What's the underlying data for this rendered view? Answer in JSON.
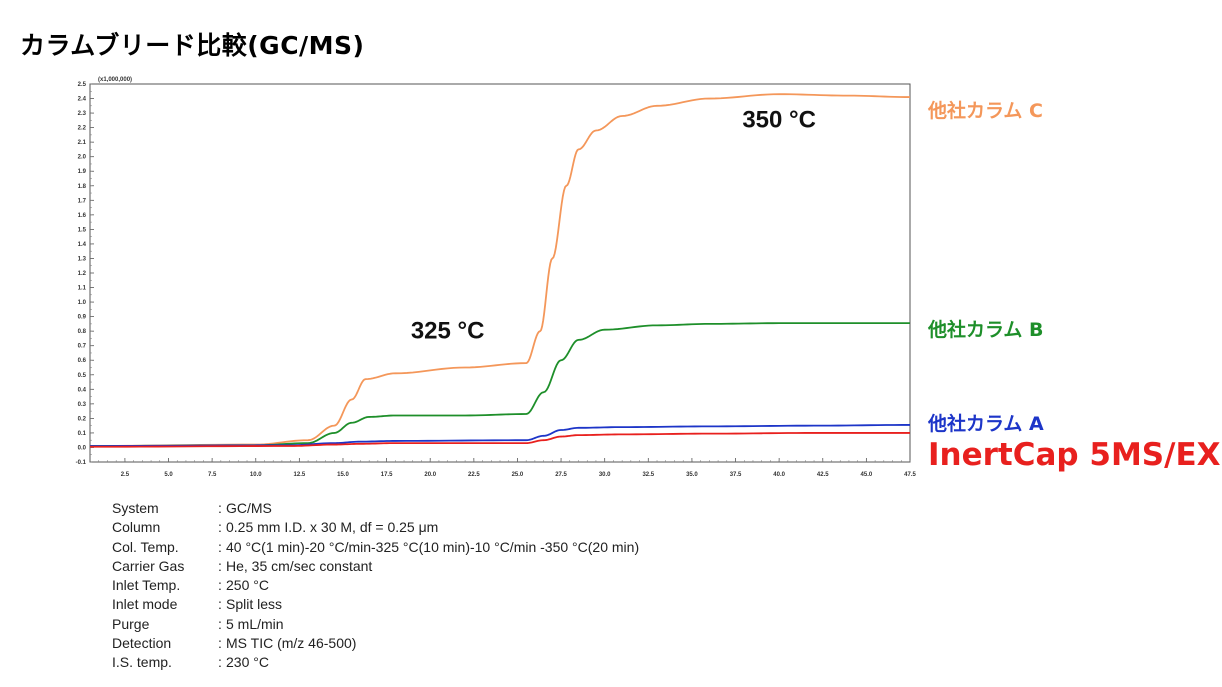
{
  "title": "カラムブリード比較(GC/MS)",
  "chart_data": {
    "type": "line",
    "title": "カラムブリード比較(GC/MS)",
    "y_multiplier_label": "(x1,000,000)",
    "xlim": [
      0.5,
      47.5
    ],
    "ylim": [
      -0.1,
      2.5
    ],
    "x_ticks": [
      "2.5",
      "5.0",
      "7.5",
      "10.0",
      "12.5",
      "15.0",
      "17.5",
      "20.0",
      "22.5",
      "25.0",
      "27.5",
      "30.0",
      "32.5",
      "35.0",
      "37.5",
      "40.0",
      "42.5",
      "45.0",
      "47.5"
    ],
    "y_ticks": [
      "-0.1",
      "0.0",
      "0.1",
      "0.2",
      "0.3",
      "0.4",
      "0.5",
      "0.6",
      "0.7",
      "0.8",
      "0.9",
      "1.0",
      "1.1",
      "1.2",
      "1.3",
      "1.4",
      "1.5",
      "1.6",
      "1.7",
      "1.8",
      "1.9",
      "2.0",
      "2.1",
      "2.2",
      "2.3",
      "2.4",
      "2.5"
    ],
    "series": [
      {
        "name": "他社カラム C",
        "color": "#f4975a",
        "x": [
          0.5,
          10,
          13,
          14.5,
          15.5,
          16.3,
          18,
          22,
          25.5,
          26.3,
          27,
          27.8,
          28.5,
          29.5,
          31,
          33,
          36,
          40,
          44,
          47.5
        ],
        "y": [
          0.01,
          0.02,
          0.05,
          0.15,
          0.33,
          0.47,
          0.51,
          0.55,
          0.58,
          0.8,
          1.3,
          1.8,
          2.05,
          2.18,
          2.28,
          2.35,
          2.4,
          2.43,
          2.42,
          2.41
        ]
      },
      {
        "name": "他社カラム B",
        "color": "#1e8f2a",
        "x": [
          0.5,
          10,
          13,
          14.5,
          15.5,
          16.5,
          18,
          22,
          25.5,
          26.5,
          27.5,
          28.5,
          30,
          33,
          36,
          40,
          44,
          47.5
        ],
        "y": [
          0.01,
          0.015,
          0.03,
          0.1,
          0.17,
          0.21,
          0.22,
          0.22,
          0.23,
          0.38,
          0.6,
          0.74,
          0.81,
          0.84,
          0.85,
          0.855,
          0.855,
          0.855
        ]
      },
      {
        "name": "他社カラム A",
        "color": "#1d35c8",
        "x": [
          0.5,
          12,
          14.5,
          16,
          18,
          25.5,
          26.5,
          27.5,
          28.5,
          31,
          36,
          42,
          47.5
        ],
        "y": [
          0.01,
          0.015,
          0.03,
          0.04,
          0.045,
          0.05,
          0.08,
          0.12,
          0.135,
          0.14,
          0.145,
          0.15,
          0.155
        ]
      },
      {
        "name": "InertCap 5MS/EX",
        "color": "#e8201e",
        "x": [
          0.5,
          12,
          14.5,
          16,
          18,
          25.5,
          26.5,
          27.5,
          28.5,
          31,
          36,
          42,
          47.5
        ],
        "y": [
          0.005,
          0.01,
          0.02,
          0.025,
          0.03,
          0.03,
          0.05,
          0.075,
          0.085,
          0.09,
          0.095,
          0.1,
          0.1
        ]
      }
    ],
    "annotations": [
      {
        "text": "325 °C",
        "x": 21,
        "y": 0.75
      },
      {
        "text": "350 °C",
        "x": 40,
        "y": 2.2
      }
    ],
    "legend_placement": "right, beside line ends",
    "grid": false
  },
  "series_labels": {
    "c": "他社カラム C",
    "b": "他社カラム B",
    "a": "他社カラム A",
    "inertcap": "InertCap 5MS/EX"
  },
  "conditions": [
    {
      "label": "System",
      "value": "GC/MS"
    },
    {
      "label": "Column",
      "value": "0.25 mm I.D. x 30 M, df = 0.25 μm"
    },
    {
      "label": "Col. Temp.",
      "value": "40 °C(1 min)-20 °C/min-325 °C(10 min)-10 °C/min -350 °C(20 min)"
    },
    {
      "label": "Carrier Gas",
      "value": "He, 35 cm/sec constant"
    },
    {
      "label": "Inlet Temp.",
      "value": "250 °C"
    },
    {
      "label": "Inlet mode",
      "value": "Split less"
    },
    {
      "label": "Purge",
      "value": "5 mL/min"
    },
    {
      "label": "Detection",
      "value": "MS TIC (m/z 46-500)"
    },
    {
      "label": "I.S. temp.",
      "value": "230 °C"
    }
  ],
  "separator": ":"
}
